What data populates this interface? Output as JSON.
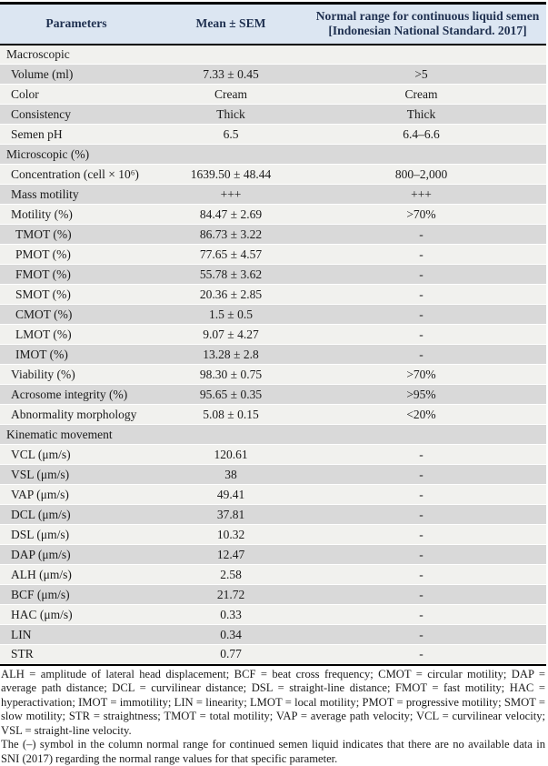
{
  "colors": {
    "header_bg": "#dce6f2",
    "row_gray": "#d9d9d9",
    "row_light": "#f1f1ee",
    "header_text": "#1f3050",
    "body_text": "#1a1a1a"
  },
  "table": {
    "header": {
      "parameters": "Parameters",
      "mean_sem": "Mean ± SEM",
      "normal_range_line1": "Normal range for continuous liquid semen",
      "normal_range_line2": "[Indonesian National Standard. 2017]"
    },
    "rows": [
      {
        "type": "section",
        "label": "Macroscopic",
        "mean": "",
        "range": ""
      },
      {
        "type": "data",
        "label": "Volume (ml)",
        "mean": "7.33 ± 0.45",
        "range": ">5"
      },
      {
        "type": "data",
        "label": "Color",
        "mean": "Cream",
        "range": "Cream"
      },
      {
        "type": "data",
        "label": "Consistency",
        "mean": "Thick",
        "range": "Thick"
      },
      {
        "type": "data",
        "label": "Semen pH",
        "mean": "6.5",
        "range": "6.4–6.6"
      },
      {
        "type": "section",
        "label": "Microscopic (%)",
        "mean": "",
        "range": ""
      },
      {
        "type": "data",
        "label": "Concentration (cell × 10⁶)",
        "mean": "1639.50 ± 48.44",
        "range": "800–2,000"
      },
      {
        "type": "data",
        "label": "Mass motility",
        "mean": "+++",
        "range": "+++"
      },
      {
        "type": "data",
        "label": "Motility (%)",
        "mean": "84.47 ± 2.69",
        "range": ">70%"
      },
      {
        "type": "data",
        "label": "TMOT (%)",
        "mean": "86.73 ± 3.22",
        "range": "-",
        "indent": true
      },
      {
        "type": "data",
        "label": "PMOT (%)",
        "mean": "77.65 ± 4.57",
        "range": "-",
        "indent": true
      },
      {
        "type": "data",
        "label": "FMOT (%)",
        "mean": "55.78 ± 3.62",
        "range": "-",
        "indent": true
      },
      {
        "type": "data",
        "label": "SMOT (%)",
        "mean": "20.36 ± 2.85",
        "range": "-",
        "indent": true
      },
      {
        "type": "data",
        "label": "CMOT (%)",
        "mean": "1.5 ± 0.5",
        "range": "-",
        "indent": true
      },
      {
        "type": "data",
        "label": "LMOT (%)",
        "mean": "9.07 ± 4.27",
        "range": "-",
        "indent": true
      },
      {
        "type": "data",
        "label": "IMOT (%)",
        "mean": "13.28 ± 2.8",
        "range": "-",
        "indent": true
      },
      {
        "type": "data",
        "label": "Viability (%)",
        "mean": "98.30 ± 0.75",
        "range": ">70%"
      },
      {
        "type": "data",
        "label": "Acrosome integrity (%)",
        "mean": "95.65 ± 0.35",
        "range": ">95%"
      },
      {
        "type": "data",
        "label": "Abnormality morphology",
        "mean": "5.08 ± 0.15",
        "range": "<20%"
      },
      {
        "type": "section",
        "label": "Kinematic movement",
        "mean": "",
        "range": ""
      },
      {
        "type": "data",
        "label": "VCL (μm/s)",
        "mean": "120.61",
        "range": "-"
      },
      {
        "type": "data",
        "label": "VSL (μm/s)",
        "mean": "38",
        "range": "-"
      },
      {
        "type": "data",
        "label": "VAP (μm/s)",
        "mean": "49.41",
        "range": "-"
      },
      {
        "type": "data",
        "label": "DCL (μm/s)",
        "mean": "37.81",
        "range": "-"
      },
      {
        "type": "data",
        "label": "DSL (μm/s)",
        "mean": "10.32",
        "range": "-"
      },
      {
        "type": "data",
        "label": "DAP (μm/s)",
        "mean": "12.47",
        "range": "-"
      },
      {
        "type": "data",
        "label": "ALH (μm/s)",
        "mean": "2.58",
        "range": "-"
      },
      {
        "type": "data",
        "label": "BCF (μm/s)",
        "mean": "21.72",
        "range": "-"
      },
      {
        "type": "data",
        "label": "HAC (μm/s)",
        "mean": "0.33",
        "range": "-"
      },
      {
        "type": "data",
        "label": "LIN",
        "mean": "0.34",
        "range": "-"
      },
      {
        "type": "data",
        "label": "STR",
        "mean": "0.77",
        "range": "-"
      }
    ]
  },
  "footnotes": {
    "abbreviations": "ALH = amplitude of lateral head displacement; BCF = beat cross frequency; CMOT = circular motility; DAP = average path distance; DCL = curvilinear distance; DSL = straight-line distance; FMOT = fast motility; HAC = hyperactivation; IMOT = immotility; LIN = linearity; LMOT = local motility; PMOT = progressive motility; SMOT = slow motility; STR = straightness; TMOT = total motility; VAP = average path velocity; VCL = curvilinear velocity; VSL = straight-line velocity.",
    "dash_note": "The (–) symbol in the column normal range for continued semen liquid indicates that there are no available data in SNI (2017) regarding the normal range values for that specific parameter."
  }
}
